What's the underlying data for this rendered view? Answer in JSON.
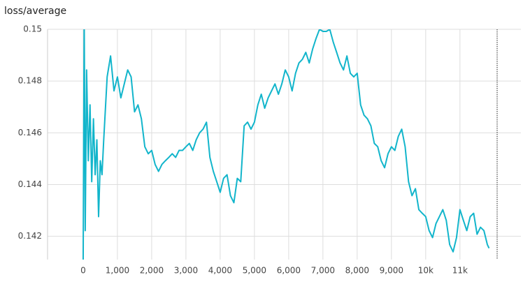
{
  "chart_data": {
    "type": "line",
    "title": "loss/average",
    "color": "#12b5cb",
    "grid": true,
    "xlim": [
      -1040,
      12780
    ],
    "ylim": [
      0.1411,
      0.15
    ],
    "xticks": [
      0,
      {
        "value": 1000,
        "label": "1,000"
      },
      {
        "value": 2000,
        "label": "2,000"
      },
      {
        "value": 3000,
        "label": "3,000"
      },
      {
        "value": 4000,
        "label": "4,000"
      },
      {
        "value": 5000,
        "label": "5,000"
      },
      {
        "value": 6000,
        "label": "6,000"
      },
      {
        "value": 7000,
        "label": "7,000"
      },
      {
        "value": 8000,
        "label": "8,000"
      },
      {
        "value": 9000,
        "label": "9,000"
      },
      {
        "value": 10000,
        "label": "10k"
      },
      {
        "value": 11000,
        "label": "11k"
      }
    ],
    "yticks": [
      0.142,
      0.144,
      0.146,
      0.148,
      0.15
    ],
    "x": [
      0,
      30,
      60,
      100,
      150,
      200,
      250,
      300,
      350,
      400,
      450,
      500,
      550,
      600,
      700,
      800,
      900,
      1000,
      1100,
      1200,
      1300,
      1400,
      1500,
      1600,
      1700,
      1800,
      1900,
      2000,
      2100,
      2200,
      2300,
      2400,
      2500,
      2600,
      2700,
      2800,
      2900,
      3000,
      3100,
      3200,
      3300,
      3400,
      3500,
      3600,
      3700,
      3800,
      3900,
      4000,
      4100,
      4200,
      4300,
      4400,
      4500,
      4600,
      4700,
      4800,
      4900,
      5000,
      5100,
      5200,
      5300,
      5400,
      5500,
      5600,
      5700,
      5800,
      5900,
      6000,
      6100,
      6200,
      6300,
      6400,
      6500,
      6600,
      6700,
      6800,
      6900,
      7000,
      7100,
      7200,
      7300,
      7400,
      7500,
      7600,
      7700,
      7800,
      7900,
      8000,
      8100,
      8200,
      8300,
      8400,
      8500,
      8600,
      8700,
      8800,
      8900,
      9000,
      9100,
      9200,
      9300,
      9400,
      9500,
      9600,
      9700,
      9800,
      9900,
      10000,
      10100,
      10200,
      10300,
      10400,
      10500,
      10600,
      10700,
      10800,
      10900,
      11000,
      11100,
      11200,
      11300,
      11400,
      11500,
      11600,
      11700,
      11800,
      11850
    ],
    "values": [
      0.14108,
      0.1505,
      0.14222,
      0.14843,
      0.14492,
      0.14708,
      0.14411,
      0.14654,
      0.14438,
      0.14573,
      0.14276,
      0.14492,
      0.14438,
      0.14573,
      0.14816,
      0.14897,
      0.14762,
      0.14816,
      0.14735,
      0.14789,
      0.14843,
      0.14816,
      0.14681,
      0.14708,
      0.14654,
      0.14546,
      0.14519,
      0.14532,
      0.14478,
      0.14451,
      0.14478,
      0.14492,
      0.14505,
      0.14519,
      0.14505,
      0.14532,
      0.14532,
      0.14546,
      0.14559,
      0.14532,
      0.14573,
      0.146,
      0.14614,
      0.14641,
      0.14505,
      0.14451,
      0.14411,
      0.1437,
      0.14424,
      0.14438,
      0.14357,
      0.1433,
      0.14424,
      0.14411,
      0.14627,
      0.14641,
      0.14614,
      0.14641,
      0.14708,
      0.14749,
      0.14695,
      0.14735,
      0.14762,
      0.14789,
      0.14749,
      0.14789,
      0.14843,
      0.14816,
      0.14762,
      0.1483,
      0.1487,
      0.14884,
      0.14911,
      0.1487,
      0.14924,
      0.14965,
      0.15,
      0.14992,
      0.14992,
      0.15,
      0.14951,
      0.14911,
      0.1487,
      0.14843,
      0.14897,
      0.1483,
      0.14816,
      0.1483,
      0.14708,
      0.14668,
      0.14654,
      0.14627,
      0.14559,
      0.14546,
      0.14492,
      0.14465,
      0.14519,
      0.14546,
      0.14532,
      0.14586,
      0.14614,
      0.14546,
      0.14411,
      0.14357,
      0.14384,
      0.14303,
      0.14289,
      0.14276,
      0.14222,
      0.14195,
      0.14249,
      0.14276,
      0.14303,
      0.14262,
      0.14168,
      0.1414,
      0.14195,
      0.14303,
      0.14262,
      0.14222,
      0.14276,
      0.14289,
      0.14208,
      0.14235,
      0.14222,
      0.14168,
      0.14154
    ]
  }
}
